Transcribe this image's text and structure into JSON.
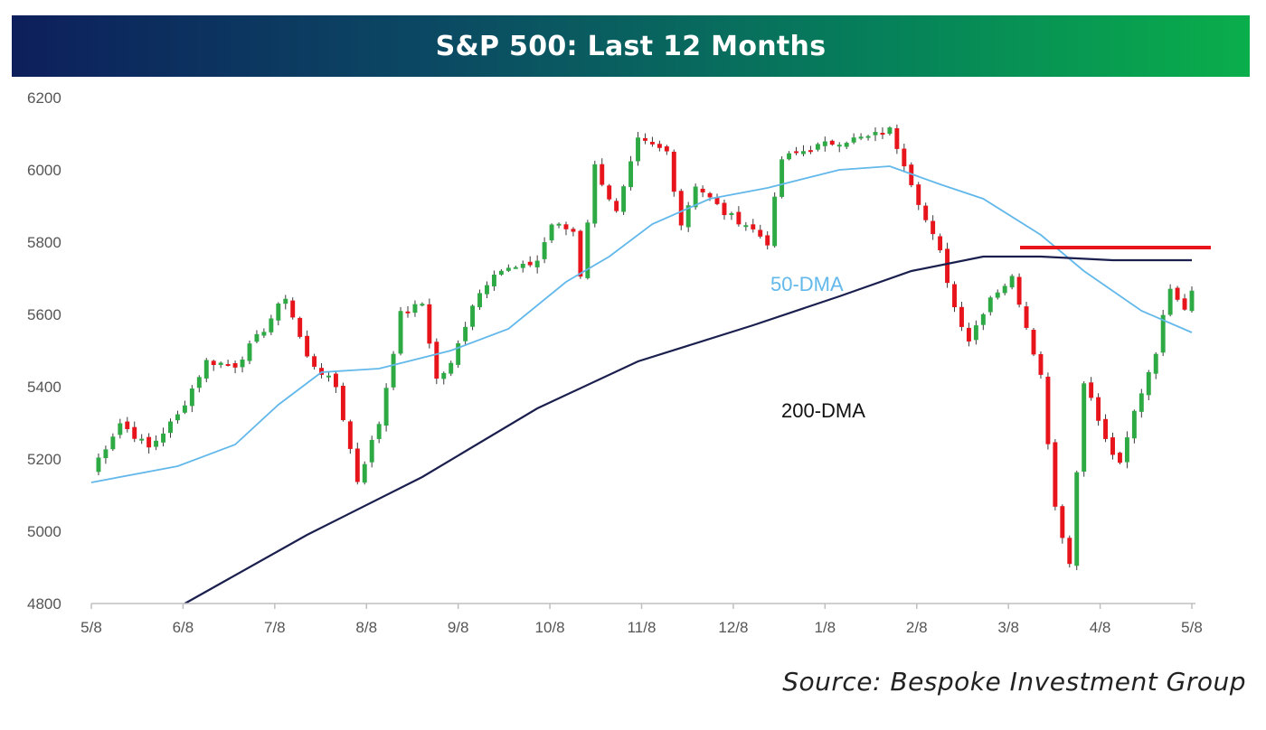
{
  "title": "S&P 500: Last 12 Months",
  "source": "Source: Bespoke Investment Group",
  "chart_data": {
    "type": "candlestick",
    "title": "S&P 500: Last 12 Months",
    "ylim": [
      4800,
      6200
    ],
    "y_ticks": [
      "6200",
      "6000",
      "5800",
      "5600",
      "5400",
      "5200",
      "5000",
      "4800"
    ],
    "x_ticks": [
      "5/8",
      "6/8",
      "7/8",
      "8/8",
      "9/8",
      "10/8",
      "11/8",
      "12/8",
      "1/8",
      "2/8",
      "3/8",
      "4/8",
      "5/8"
    ],
    "up_color": "#2eaa45",
    "down_color": "#e8141b",
    "price_path": [
      [
        0,
        5170
      ],
      [
        4,
        5300
      ],
      [
        8,
        5230
      ],
      [
        12,
        5320
      ],
      [
        16,
        5470
      ],
      [
        20,
        5460
      ],
      [
        24,
        5560
      ],
      [
        27,
        5650
      ],
      [
        30,
        5480
      ],
      [
        34,
        5400
      ],
      [
        37,
        5140
      ],
      [
        40,
        5300
      ],
      [
        43,
        5600
      ],
      [
        46,
        5630
      ],
      [
        48,
        5420
      ],
      [
        50,
        5460
      ],
      [
        53,
        5630
      ],
      [
        56,
        5720
      ],
      [
        60,
        5730
      ],
      [
        62,
        5750
      ],
      [
        64,
        5850
      ],
      [
        67,
        5830
      ],
      [
        68,
        5710
      ],
      [
        70,
        6010
      ],
      [
        73,
        5880
      ],
      [
        76,
        6080
      ],
      [
        80,
        6050
      ],
      [
        82,
        5850
      ],
      [
        84,
        5960
      ],
      [
        88,
        5880
      ],
      [
        91,
        5850
      ],
      [
        94,
        5800
      ],
      [
        96,
        6030
      ],
      [
        100,
        6060
      ],
      [
        104,
        6080
      ],
      [
        108,
        6090
      ],
      [
        111,
        6110
      ],
      [
        113,
        6020
      ],
      [
        116,
        5860
      ],
      [
        118,
        5770
      ],
      [
        120,
        5620
      ],
      [
        122,
        5530
      ],
      [
        125,
        5650
      ],
      [
        128,
        5700
      ],
      [
        130,
        5570
      ],
      [
        132,
        5430
      ],
      [
        134,
        5070
      ],
      [
        136,
        4910
      ],
      [
        138,
        5420
      ],
      [
        141,
        5250
      ],
      [
        143,
        5180
      ],
      [
        145,
        5330
      ],
      [
        148,
        5500
      ],
      [
        150,
        5680
      ],
      [
        152,
        5620
      ],
      [
        153,
        5670
      ]
    ],
    "series": [
      {
        "name": "50-DMA",
        "color": "#62b8ea",
        "points": [
          [
            0,
            5135
          ],
          [
            12,
            5180
          ],
          [
            20,
            5240
          ],
          [
            26,
            5350
          ],
          [
            32,
            5440
          ],
          [
            40,
            5450
          ],
          [
            50,
            5500
          ],
          [
            58,
            5560
          ],
          [
            66,
            5690
          ],
          [
            72,
            5760
          ],
          [
            78,
            5850
          ],
          [
            86,
            5920
          ],
          [
            94,
            5950
          ],
          [
            104,
            6000
          ],
          [
            111,
            6010
          ],
          [
            118,
            5960
          ],
          [
            124,
            5920
          ],
          [
            132,
            5820
          ],
          [
            138,
            5720
          ],
          [
            146,
            5610
          ],
          [
            153,
            5550
          ]
        ]
      },
      {
        "name": "200-DMA",
        "color": "#1a1f4e",
        "points": [
          [
            13,
            4800
          ],
          [
            30,
            4990
          ],
          [
            46,
            5150
          ],
          [
            62,
            5340
          ],
          [
            76,
            5470
          ],
          [
            92,
            5570
          ],
          [
            104,
            5650
          ],
          [
            114,
            5720
          ],
          [
            124,
            5760
          ],
          [
            132,
            5760
          ],
          [
            142,
            5750
          ],
          [
            153,
            5750
          ]
        ]
      }
    ],
    "annotations": [
      "50-DMA",
      "200-DMA"
    ],
    "resistance_line": {
      "value": 5785,
      "color": "#e8141b"
    },
    "xlabel": "",
    "ylabel": ""
  }
}
